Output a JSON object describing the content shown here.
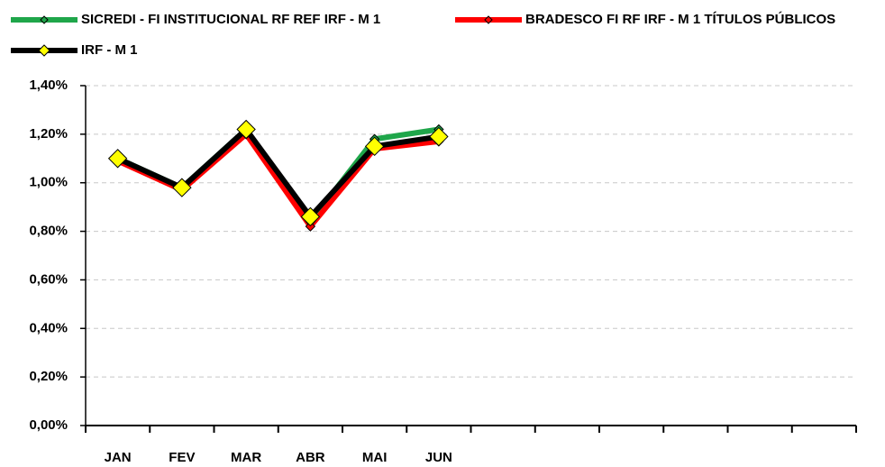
{
  "chart_data": {
    "type": "line",
    "categories": [
      "JAN",
      "FEV",
      "MAR",
      "ABR",
      "MAI",
      "JUN",
      null,
      null,
      null,
      null,
      null,
      null
    ],
    "series": [
      {
        "name": "SICREDI - FI INSTITUCIONAL RF REF IRF - M 1",
        "color": "#1fa64a",
        "values": [
          1.1,
          0.98,
          1.22,
          0.84,
          1.18,
          1.22,
          null,
          null,
          null,
          null,
          null,
          null
        ]
      },
      {
        "name": "BRADESCO FI RF IRF - M 1 TÍTULOS PÚBLICOS",
        "color": "#ff0000",
        "values": [
          1.09,
          0.97,
          1.2,
          0.82,
          1.14,
          1.17,
          null,
          null,
          null,
          null,
          null,
          null
        ]
      },
      {
        "name": "IRF - M 1",
        "color": "#000000",
        "marker_color": "#ffff00",
        "values": [
          1.1,
          0.98,
          1.22,
          0.86,
          1.15,
          1.19,
          null,
          null,
          null,
          null,
          null,
          null
        ]
      }
    ],
    "ylim": [
      0,
      1.4
    ],
    "yticks": [
      {
        "value": 0,
        "label": "0,00%"
      },
      {
        "value": 0.2,
        "label": "0,20%"
      },
      {
        "value": 0.4,
        "label": "0,40%"
      },
      {
        "value": 0.6,
        "label": "0,60%"
      },
      {
        "value": 0.8,
        "label": "0,80%"
      },
      {
        "value": 1.0,
        "label": "1,00%"
      },
      {
        "value": 1.2,
        "label": "1,20%"
      },
      {
        "value": 1.4,
        "label": "1,40%"
      }
    ],
    "grid": true,
    "legend": "top"
  }
}
